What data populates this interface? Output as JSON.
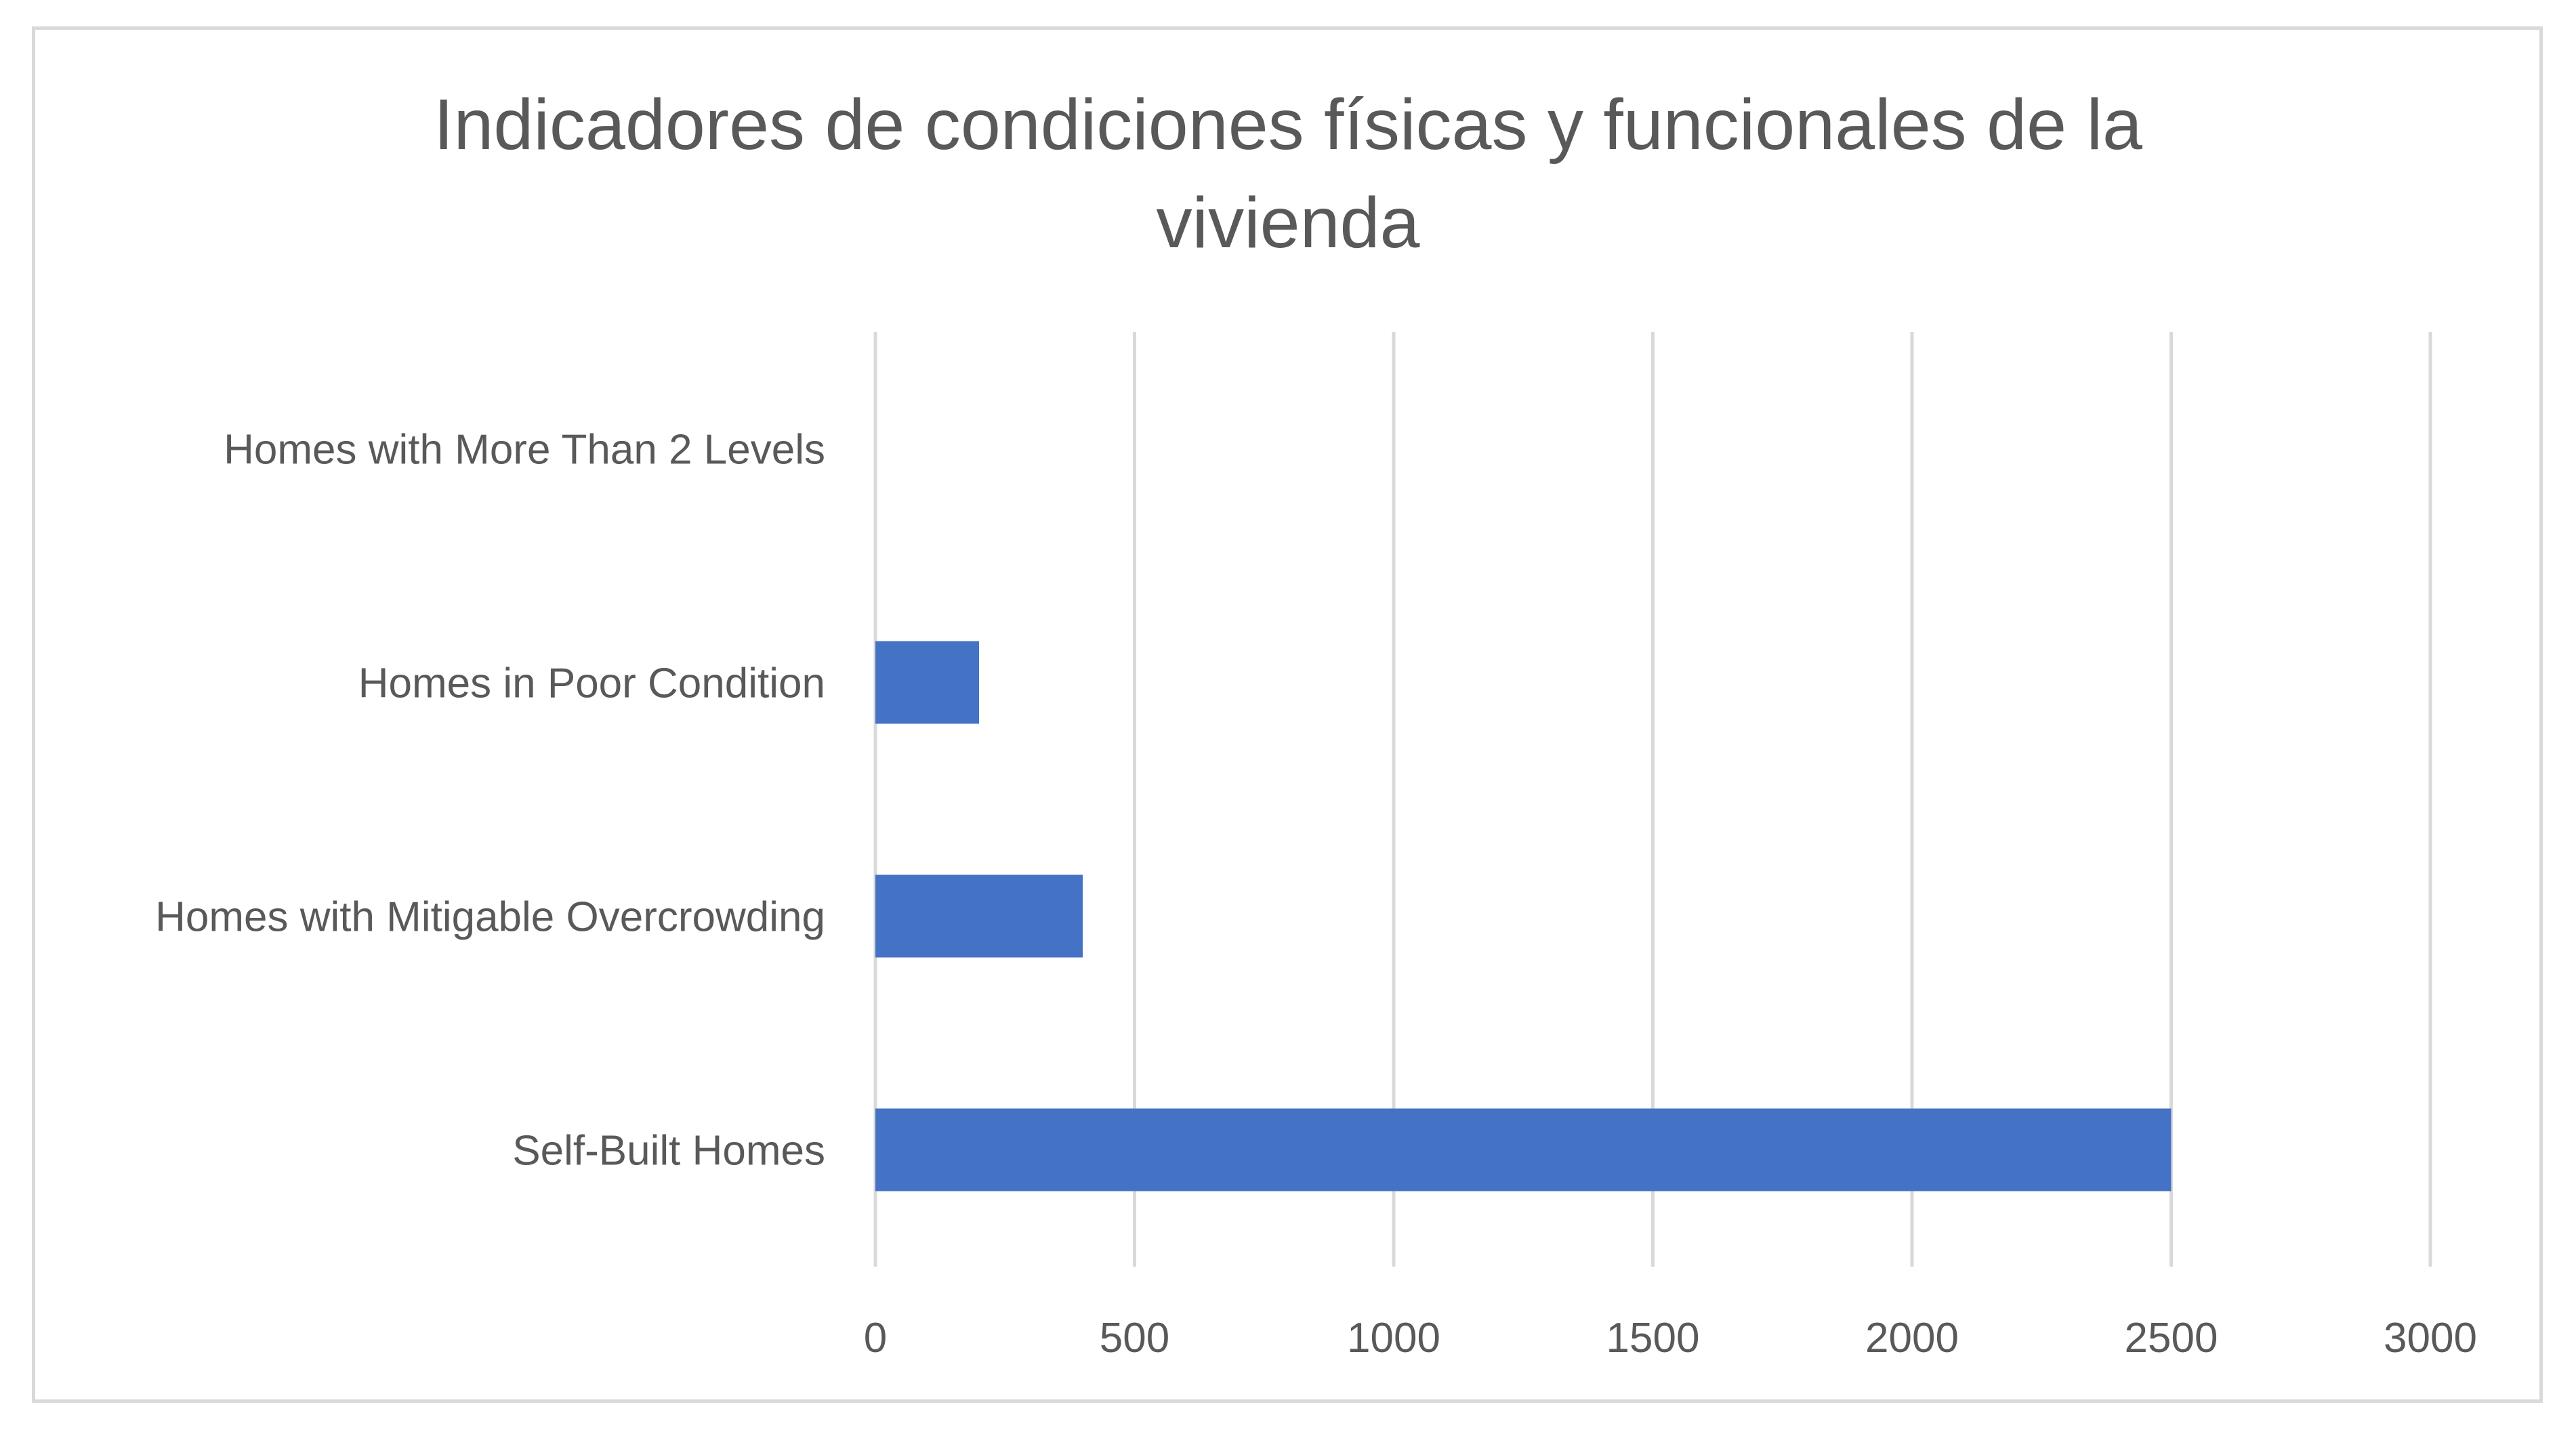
{
  "chart_data": {
    "type": "bar",
    "orientation": "horizontal",
    "title_lines": [
      "Indicadores de condiciones físicas y funcionales de la",
      "vivienda"
    ],
    "categories": [
      "Self-Built Homes",
      "Homes with Mitigable Overcrowding",
      "Homes in Poor Condition",
      "Homes with More Than 2 Levels"
    ],
    "values": [
      2500,
      400,
      200,
      0
    ],
    "xlim": [
      0,
      3000
    ],
    "xticks": [
      0,
      500,
      1000,
      1500,
      2000,
      2500,
      3000
    ],
    "xlabel": "",
    "ylabel": "",
    "grid": "vertical",
    "legend": "none",
    "colors": {
      "bar": "#4472c4",
      "grid": "#d9d9d9",
      "text": "#595959",
      "border": "#d9d9d9"
    }
  }
}
